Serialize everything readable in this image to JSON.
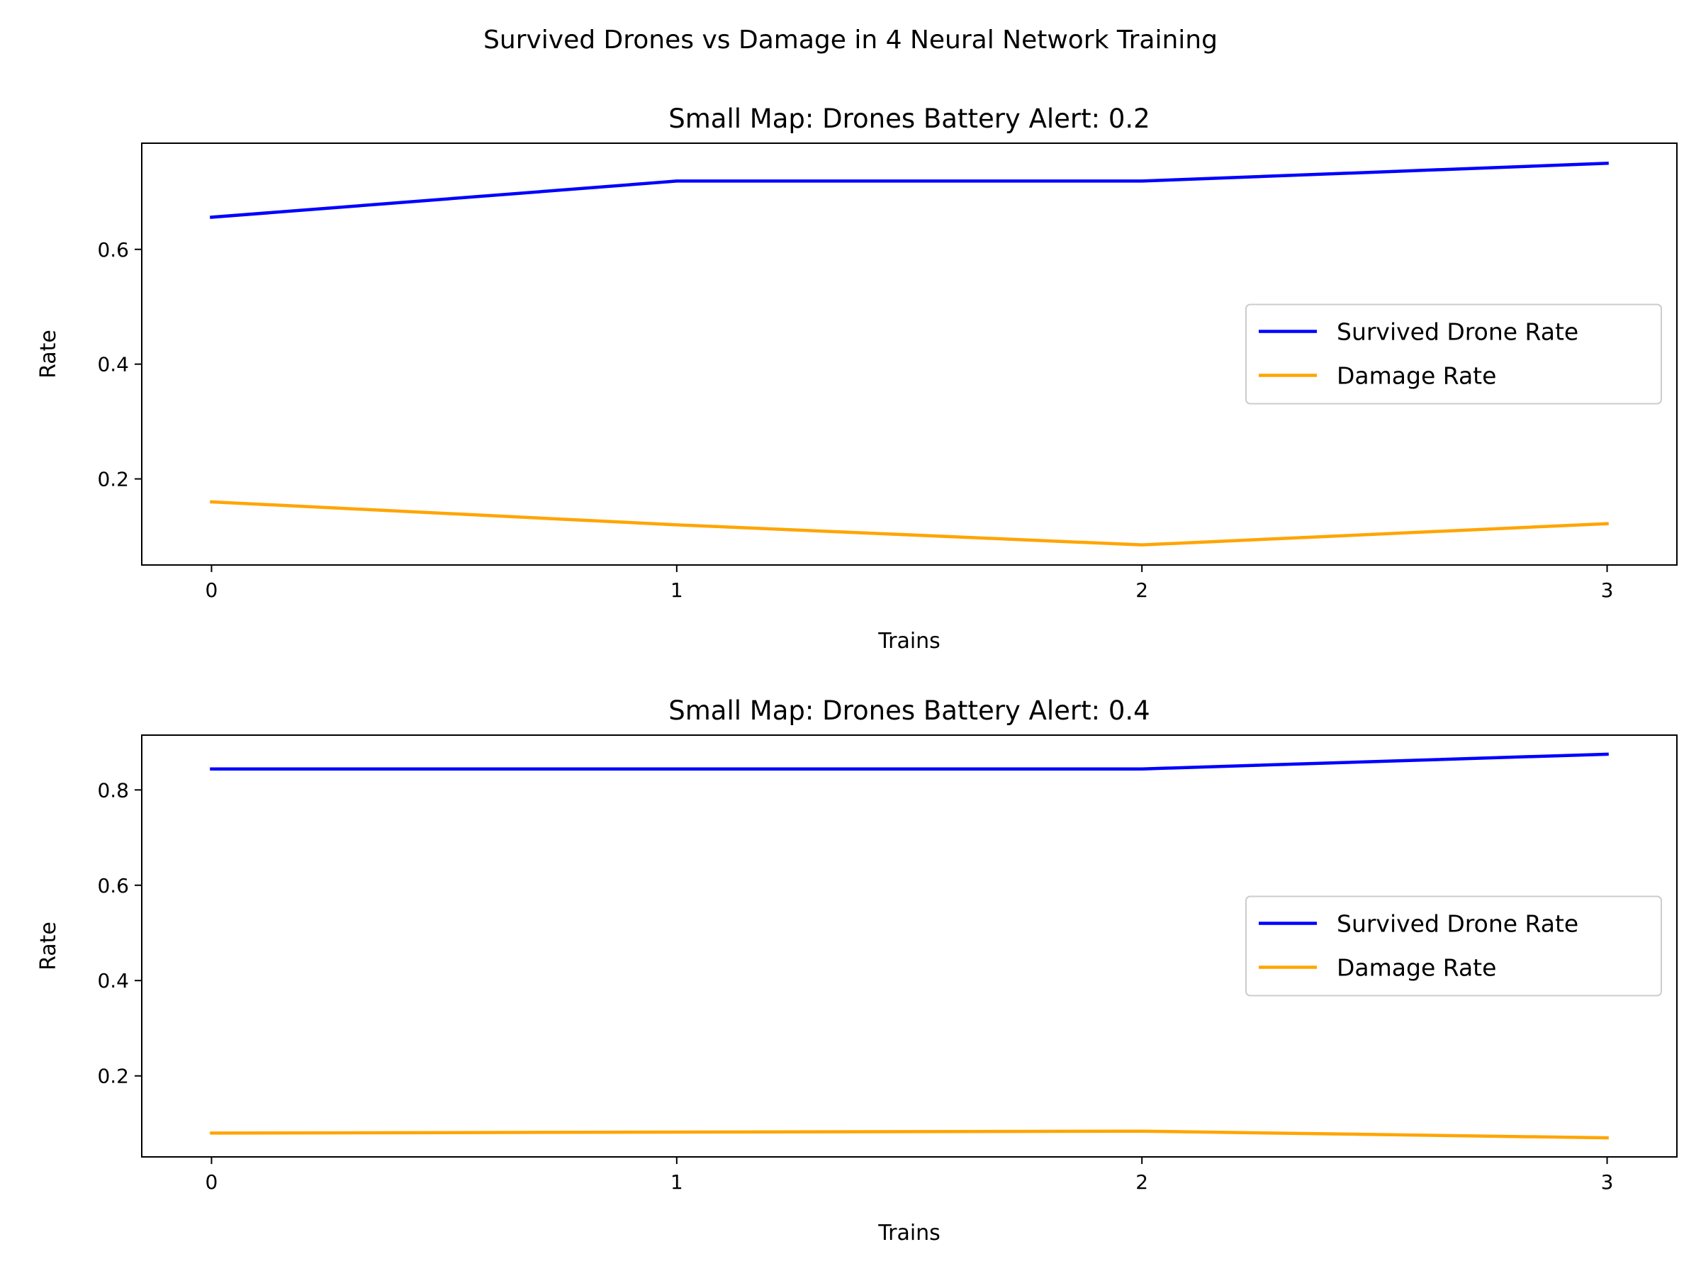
{
  "figure": {
    "suptitle": "Survived Drones vs Damage in 4 Neural Network Training"
  },
  "chart_data": [
    {
      "type": "line",
      "title": "Small Map: Drones Battery Alert: 0.2",
      "xlabel": "Trains",
      "ylabel": "Rate",
      "x": [
        0,
        1,
        2,
        3
      ],
      "xticks": [
        "0",
        "1",
        "2",
        "3"
      ],
      "yticks": [
        "0.2",
        "0.4",
        "0.6"
      ],
      "ytick_values": [
        0.2,
        0.4,
        0.6
      ],
      "ylim": [
        0.05,
        0.785
      ],
      "xlim": [
        -0.15,
        3.15
      ],
      "grid": false,
      "legend_position": "center right",
      "series": [
        {
          "name": "Survived Drone Rate",
          "color": "#0000ff",
          "values": [
            0.656,
            0.719,
            0.719,
            0.75
          ]
        },
        {
          "name": "Damage Rate",
          "color": "#ffa500",
          "values": [
            0.16,
            0.12,
            0.085,
            0.122
          ]
        }
      ]
    },
    {
      "type": "line",
      "title": "Small Map: Drones Battery Alert: 0.4",
      "xlabel": "Trains",
      "ylabel": "Rate",
      "x": [
        0,
        1,
        2,
        3
      ],
      "xticks": [
        "0",
        "1",
        "2",
        "3"
      ],
      "yticks": [
        "0.2",
        "0.4",
        "0.6",
        "0.8"
      ],
      "ytick_values": [
        0.2,
        0.4,
        0.6,
        0.8
      ],
      "ylim": [
        0.03,
        0.915
      ],
      "xlim": [
        -0.15,
        3.15
      ],
      "grid": false,
      "legend_position": "center right",
      "series": [
        {
          "name": "Survived Drone Rate",
          "color": "#0000ff",
          "values": [
            0.844,
            0.844,
            0.844,
            0.875
          ]
        },
        {
          "name": "Damage Rate",
          "color": "#ffa500",
          "values": [
            0.08,
            0.082,
            0.084,
            0.07
          ]
        }
      ]
    }
  ]
}
